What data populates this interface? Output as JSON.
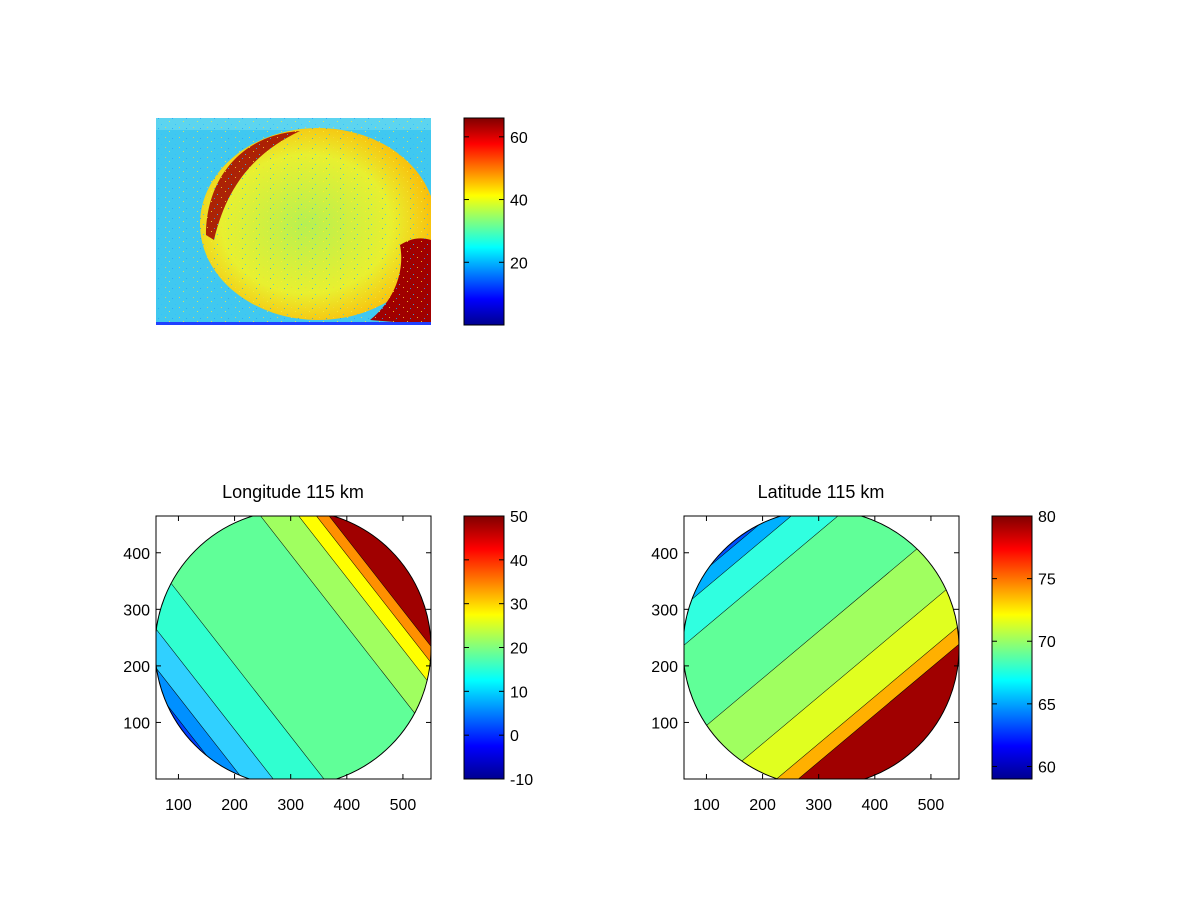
{
  "chart_data": [
    {
      "type": "heatmap",
      "title": "",
      "xlabel": "",
      "ylabel": "",
      "colorbar": {
        "ticks": [
          20,
          40,
          60
        ],
        "range": [
          0,
          66
        ]
      },
      "description_values": {
        "background_level": 27,
        "disk_level": 40,
        "limb_level": 66
      }
    },
    {
      "type": "heatmap",
      "title": "Longitude 115 km",
      "xlabel": "",
      "ylabel": "",
      "xlim": [
        60,
        550
      ],
      "ylim": [
        0,
        465
      ],
      "xticks": [
        100,
        200,
        300,
        400,
        500
      ],
      "yticks": [
        100,
        200,
        300,
        400
      ],
      "colorbar": {
        "ticks": [
          -10,
          0,
          10,
          20,
          30,
          40,
          50
        ],
        "range": [
          -10,
          50
        ]
      },
      "levels": [
        {
          "value": 2,
          "color": "#0000a0"
        },
        {
          "value": 5,
          "color": "#0040ff"
        },
        {
          "value": 8,
          "color": "#0090ff"
        },
        {
          "value": 12,
          "color": "#30d0ff"
        },
        {
          "value": 16,
          "color": "#30ffd0"
        },
        {
          "value": 20,
          "color": "#60ff98"
        },
        {
          "value": 24,
          "color": "#a0ff60"
        },
        {
          "value": 28,
          "color": "#ffff00"
        },
        {
          "value": 33,
          "color": "#ff9000"
        },
        {
          "value": 40,
          "color": "#a00000"
        }
      ]
    },
    {
      "type": "heatmap",
      "title": "Latitude 115 km",
      "xlabel": "",
      "ylabel": "",
      "xlim": [
        60,
        550
      ],
      "ylim": [
        0,
        465
      ],
      "xticks": [
        100,
        200,
        300,
        400,
        500
      ],
      "yticks": [
        100,
        200,
        300,
        400
      ],
      "colorbar": {
        "ticks": [
          60,
          65,
          70,
          75,
          80
        ],
        "range": [
          59,
          80
        ]
      },
      "levels": [
        {
          "value": 60,
          "color": "#0000a0"
        },
        {
          "value": 62,
          "color": "#0050ff"
        },
        {
          "value": 64,
          "color": "#00b0ff"
        },
        {
          "value": 66,
          "color": "#30ffe0"
        },
        {
          "value": 68.5,
          "color": "#60ff98"
        },
        {
          "value": 70.5,
          "color": "#a0ff60"
        },
        {
          "value": 72,
          "color": "#e0ff20"
        },
        {
          "value": 74,
          "color": "#ffb000"
        },
        {
          "value": 77,
          "color": "#a00000"
        }
      ]
    }
  ]
}
